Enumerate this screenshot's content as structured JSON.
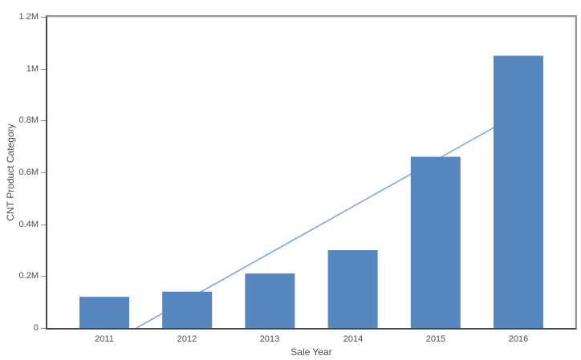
{
  "chart_data": {
    "type": "bar",
    "title": "",
    "xlabel": "Sale Year",
    "ylabel": "CNT Product Category",
    "categories": [
      "2011",
      "2012",
      "2013",
      "2014",
      "2015",
      "2016"
    ],
    "series": [
      {
        "name": "CNT Product Category",
        "values": [
          120000,
          140000,
          210000,
          300000,
          660000,
          1050000
        ]
      }
    ],
    "y_ticks": [
      {
        "value": 0,
        "label": "0"
      },
      {
        "value": 200000,
        "label": "0.2M"
      },
      {
        "value": 400000,
        "label": "0.4M"
      },
      {
        "value": 600000,
        "label": "0.6M"
      },
      {
        "value": 800000,
        "label": "0.8M"
      },
      {
        "value": 1000000,
        "label": "1M"
      },
      {
        "value": 1200000,
        "label": "1.2M"
      }
    ],
    "ylim": [
      0,
      1200000
    ],
    "grid": false,
    "legend": "none",
    "bar_color": "#5587be",
    "trend_line": {
      "color": "#7fa8da",
      "start": {
        "year": 2011.39,
        "value": 0
      },
      "end": {
        "year": 2016,
        "value": 826000
      }
    },
    "axis_color": "#474747",
    "frame_color": "#969696",
    "tick_text_color": "#4d4d4d"
  }
}
